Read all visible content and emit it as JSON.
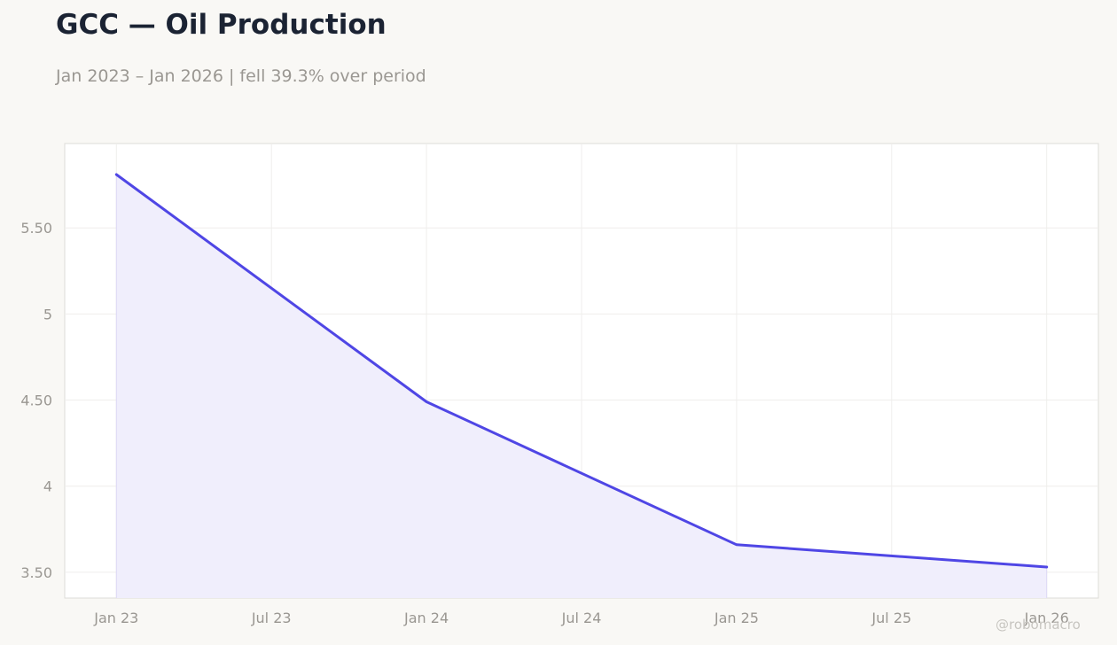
{
  "title": "GCC — Oil Production",
  "subtitle": "Jan 2023 – Jan 2026 | fell 39.3% over period",
  "watermark": "@robomacro",
  "colors": {
    "line": "#4f46e5",
    "area_fill": "#f0eefc",
    "grid": "#efeeec",
    "plot_border": "#dddcd8",
    "plot_bg": "#ffffff",
    "page_bg": "#f9f8f5"
  },
  "chart_data": {
    "type": "area",
    "title": "GCC — Oil Production",
    "subtitle": "Jan 2023 – Jan 2026 | fell 39.3% over period",
    "xlabel": "",
    "ylabel": "",
    "series": [
      {
        "points": [
          {
            "date": "2023-01",
            "value": 5.81
          },
          {
            "date": "2024-01",
            "value": 4.49
          },
          {
            "date": "2025-01",
            "value": 3.66
          },
          {
            "date": "2026-01",
            "value": 3.53
          }
        ]
      }
    ],
    "x_ticks": [
      {
        "date": "2023-01",
        "label": "Jan 23"
      },
      {
        "date": "2023-07",
        "label": "Jul 23"
      },
      {
        "date": "2024-01",
        "label": "Jan 24"
      },
      {
        "date": "2024-07",
        "label": "Jul 24"
      },
      {
        "date": "2025-01",
        "label": "Jan 25"
      },
      {
        "date": "2025-07",
        "label": "Jul 25"
      },
      {
        "date": "2026-01",
        "label": "Jan 26"
      }
    ],
    "y_ticks": [
      {
        "value": 3.5,
        "label": "3.50"
      },
      {
        "value": 4.0,
        "label": "4"
      },
      {
        "value": 4.5,
        "label": "4.50"
      },
      {
        "value": 5.0,
        "label": "5"
      },
      {
        "value": 5.5,
        "label": "5.50"
      }
    ],
    "xlim": [
      "2022-11",
      "2026-03"
    ],
    "ylim": [
      3.35,
      5.99
    ],
    "grid": true,
    "legend": "none"
  }
}
